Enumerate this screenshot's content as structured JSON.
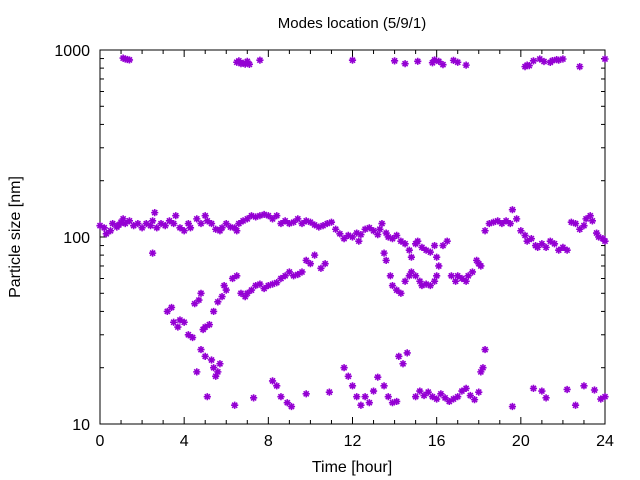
{
  "chart_data": {
    "type": "scatter",
    "title": "Modes location (5/9/1)",
    "xlabel": "Time [hour]",
    "ylabel": "Particle size [nm]",
    "xlim": [
      0,
      24
    ],
    "ylim": [
      10,
      1000
    ],
    "yscale": "log",
    "x_ticks": [
      "0",
      "4",
      "8",
      "12",
      "16",
      "20",
      "24"
    ],
    "y_ticks": [
      "10",
      "100",
      "1000"
    ],
    "grid": false,
    "marker": "asterisk",
    "color": "#9400d3",
    "series": [
      {
        "mode": "upper",
        "points": [
          [
            1.1,
            905
          ],
          [
            1.2,
            895
          ],
          [
            1.3,
            890
          ],
          [
            1.4,
            885
          ],
          [
            6.5,
            860
          ],
          [
            6.6,
            875
          ],
          [
            6.7,
            845
          ],
          [
            6.8,
            850
          ],
          [
            6.9,
            840
          ],
          [
            7.0,
            870
          ],
          [
            7.1,
            838
          ],
          [
            7.6,
            882
          ],
          [
            12.0,
            882
          ],
          [
            14.0,
            875
          ],
          [
            14.5,
            845
          ],
          [
            15.1,
            870
          ],
          [
            15.8,
            855
          ],
          [
            15.9,
            885
          ],
          [
            16.1,
            870
          ],
          [
            16.3,
            835
          ],
          [
            16.8,
            880
          ],
          [
            17.0,
            860
          ],
          [
            17.4,
            830
          ],
          [
            20.2,
            815
          ],
          [
            20.3,
            830
          ],
          [
            20.4,
            825
          ],
          [
            20.6,
            875
          ],
          [
            20.9,
            895
          ],
          [
            21.1,
            868
          ],
          [
            21.4,
            858
          ],
          [
            21.5,
            878
          ],
          [
            21.7,
            888
          ],
          [
            21.8,
            882
          ],
          [
            22.0,
            895
          ],
          [
            22.8,
            815
          ],
          [
            24.0,
            895
          ]
        ]
      },
      {
        "mode": "accumulation",
        "points": [
          [
            0.0,
            115
          ],
          [
            0.2,
            112
          ],
          [
            0.3,
            104
          ],
          [
            0.5,
            108
          ],
          [
            0.6,
            118
          ],
          [
            0.8,
            113
          ],
          [
            0.9,
            116
          ],
          [
            1.0,
            120
          ],
          [
            1.1,
            125
          ],
          [
            1.2,
            118
          ],
          [
            1.4,
            122
          ],
          [
            1.6,
            115
          ],
          [
            1.8,
            118
          ],
          [
            2.0,
            112
          ],
          [
            2.2,
            118
          ],
          [
            2.4,
            115
          ],
          [
            2.5,
            122
          ],
          [
            2.6,
            135
          ],
          [
            2.7,
            112
          ],
          [
            2.9,
            118
          ],
          [
            3.1,
            115
          ],
          [
            3.3,
            122
          ],
          [
            3.5,
            118
          ],
          [
            3.6,
            130
          ],
          [
            3.8,
            112
          ],
          [
            4.0,
            108
          ],
          [
            4.2,
            118
          ],
          [
            4.3,
            112
          ],
          [
            4.6,
            125
          ],
          [
            4.8,
            118
          ],
          [
            5.0,
            130
          ],
          [
            5.1,
            122
          ],
          [
            5.3,
            118
          ],
          [
            5.5,
            110
          ],
          [
            5.7,
            108
          ],
          [
            5.8,
            112
          ],
          [
            6.0,
            118
          ],
          [
            6.2,
            113
          ],
          [
            6.4,
            112
          ],
          [
            6.5,
            108
          ],
          [
            6.6,
            118
          ],
          [
            6.8,
            122
          ],
          [
            7.0,
            125
          ],
          [
            7.2,
            130
          ],
          [
            7.4,
            128
          ],
          [
            7.6,
            130
          ],
          [
            7.8,
            132
          ],
          [
            8.0,
            130
          ],
          [
            8.2,
            125
          ],
          [
            8.4,
            130
          ],
          [
            8.6,
            118
          ],
          [
            8.8,
            122
          ],
          [
            9.0,
            118
          ],
          [
            9.2,
            120
          ],
          [
            9.4,
            125
          ],
          [
            9.6,
            118
          ],
          [
            9.8,
            122
          ],
          [
            10.0,
            120
          ],
          [
            10.2,
            116
          ],
          [
            10.4,
            113
          ],
          [
            10.6,
            115
          ],
          [
            10.8,
            118
          ],
          [
            11.0,
            120
          ],
          [
            11.2,
            110
          ],
          [
            11.4,
            104
          ],
          [
            11.6,
            98
          ],
          [
            11.8,
            102
          ],
          [
            12.0,
            100
          ],
          [
            12.2,
            105
          ],
          [
            12.3,
            95
          ],
          [
            12.4,
            103
          ],
          [
            12.6,
            110
          ],
          [
            12.8,
            112
          ],
          [
            13.0,
            108
          ],
          [
            13.2,
            103
          ],
          [
            13.4,
            118
          ],
          [
            13.6,
            105
          ],
          [
            13.7,
            100
          ],
          [
            13.9,
            98
          ],
          [
            14.1,
            102
          ],
          [
            14.3,
            95
          ],
          [
            14.5,
            92
          ],
          [
            14.7,
            85
          ],
          [
            14.8,
            78
          ],
          [
            15.0,
            92
          ],
          [
            15.1,
            95
          ],
          [
            15.3,
            88
          ],
          [
            15.5,
            85
          ],
          [
            15.7,
            83
          ],
          [
            15.9,
            90
          ],
          [
            16.0,
            78
          ],
          [
            18.3,
            108
          ],
          [
            18.5,
            118
          ],
          [
            18.7,
            120
          ],
          [
            18.9,
            122
          ],
          [
            19.1,
            118
          ],
          [
            19.3,
            122
          ],
          [
            19.5,
            118
          ],
          [
            19.6,
            140
          ],
          [
            19.8,
            125
          ],
          [
            20.0,
            108
          ],
          [
            20.2,
            102
          ],
          [
            20.3,
            95
          ],
          [
            20.5,
            98
          ],
          [
            20.7,
            90
          ],
          [
            20.8,
            88
          ],
          [
            21.0,
            92
          ],
          [
            21.2,
            88
          ],
          [
            21.4,
            95
          ],
          [
            21.6,
            92
          ],
          [
            21.8,
            85
          ],
          [
            22.0,
            88
          ],
          [
            22.2,
            85
          ],
          [
            22.4,
            120
          ],
          [
            22.6,
            118
          ],
          [
            22.8,
            110
          ],
          [
            23.0,
            115
          ],
          [
            23.1,
            125
          ],
          [
            23.3,
            130
          ],
          [
            23.4,
            122
          ],
          [
            23.6,
            105
          ],
          [
            23.7,
            100
          ],
          [
            23.9,
            98
          ],
          [
            24.0,
            95
          ]
        ]
      },
      {
        "mode": "growing",
        "points": [
          [
            2.5,
            82
          ],
          [
            3.2,
            40
          ],
          [
            3.4,
            42
          ],
          [
            3.5,
            35
          ],
          [
            3.7,
            33
          ],
          [
            3.8,
            36
          ],
          [
            4.0,
            35
          ],
          [
            4.2,
            30
          ],
          [
            4.4,
            29
          ],
          [
            4.5,
            44
          ],
          [
            4.7,
            46
          ],
          [
            4.8,
            50
          ],
          [
            4.9,
            32
          ],
          [
            5.0,
            33
          ],
          [
            5.2,
            34
          ],
          [
            5.4,
            40
          ],
          [
            5.6,
            45
          ],
          [
            5.8,
            48
          ],
          [
            5.9,
            55
          ],
          [
            6.0,
            52
          ],
          [
            6.3,
            60
          ],
          [
            6.5,
            62
          ],
          [
            6.7,
            50
          ],
          [
            6.9,
            48
          ],
          [
            7.0,
            50
          ],
          [
            7.2,
            52
          ],
          [
            7.4,
            55
          ],
          [
            7.6,
            56
          ],
          [
            7.8,
            53
          ],
          [
            8.0,
            55
          ],
          [
            8.2,
            56
          ],
          [
            8.4,
            57
          ],
          [
            8.6,
            60
          ],
          [
            8.8,
            62
          ],
          [
            9.0,
            65
          ],
          [
            9.2,
            62
          ],
          [
            9.4,
            63
          ],
          [
            9.6,
            65
          ],
          [
            9.8,
            75
          ],
          [
            10.0,
            72
          ],
          [
            10.2,
            80
          ],
          [
            10.5,
            68
          ],
          [
            10.7,
            72
          ],
          [
            13.3,
            110
          ],
          [
            13.5,
            82
          ],
          [
            13.6,
            75
          ],
          [
            13.8,
            62
          ],
          [
            13.9,
            55
          ],
          [
            14.1,
            52
          ],
          [
            14.3,
            50
          ],
          [
            14.5,
            58
          ],
          [
            14.7,
            62
          ],
          [
            14.8,
            65
          ],
          [
            15.0,
            62
          ],
          [
            15.2,
            58
          ],
          [
            15.3,
            55
          ],
          [
            15.5,
            56
          ],
          [
            15.7,
            55
          ],
          [
            15.9,
            58
          ],
          [
            16.0,
            62
          ],
          [
            16.1,
            70
          ],
          [
            16.3,
            90
          ],
          [
            16.5,
            95
          ],
          [
            16.7,
            62
          ],
          [
            16.9,
            58
          ],
          [
            17.0,
            62
          ],
          [
            17.2,
            60
          ],
          [
            17.4,
            58
          ],
          [
            17.5,
            62
          ],
          [
            17.7,
            65
          ],
          [
            17.9,
            75
          ],
          [
            18.0,
            72
          ],
          [
            18.1,
            70
          ]
        ]
      },
      {
        "mode": "nucleation",
        "points": [
          [
            4.6,
            19
          ],
          [
            4.8,
            25
          ],
          [
            5.0,
            23
          ],
          [
            5.1,
            14
          ],
          [
            5.3,
            22
          ],
          [
            5.4,
            20
          ],
          [
            5.5,
            18
          ],
          [
            5.6,
            19
          ],
          [
            5.7,
            21
          ],
          [
            6.4,
            12.6
          ],
          [
            7.3,
            13.8
          ],
          [
            8.2,
            17
          ],
          [
            8.4,
            16
          ],
          [
            8.6,
            14
          ],
          [
            8.9,
            13
          ],
          [
            9.1,
            12.4
          ],
          [
            9.8,
            14.5
          ],
          [
            10.9,
            14.8
          ],
          [
            11.6,
            20
          ],
          [
            11.8,
            18
          ],
          [
            12.0,
            16
          ],
          [
            12.2,
            14
          ],
          [
            12.4,
            12.6
          ],
          [
            12.6,
            14
          ],
          [
            12.8,
            13
          ],
          [
            13.0,
            15
          ],
          [
            13.2,
            17.8
          ],
          [
            13.5,
            16
          ],
          [
            13.7,
            14
          ],
          [
            13.9,
            13
          ],
          [
            14.1,
            13.2
          ],
          [
            14.2,
            23
          ],
          [
            14.4,
            21
          ],
          [
            14.6,
            24
          ],
          [
            15.0,
            14
          ],
          [
            15.2,
            15
          ],
          [
            15.4,
            14.2
          ],
          [
            15.6,
            14.8
          ],
          [
            15.8,
            14
          ],
          [
            16.0,
            13.6
          ],
          [
            16.2,
            14.5
          ],
          [
            16.4,
            13.8
          ],
          [
            16.6,
            13.2
          ],
          [
            16.8,
            13.6
          ],
          [
            17.0,
            14
          ],
          [
            17.2,
            15
          ],
          [
            17.4,
            15.5
          ],
          [
            17.6,
            14.2
          ],
          [
            17.8,
            13.5
          ],
          [
            18.0,
            14.8
          ],
          [
            18.1,
            19
          ],
          [
            18.2,
            20
          ],
          [
            18.3,
            25
          ],
          [
            19.6,
            12.4
          ],
          [
            20.6,
            15.5
          ],
          [
            21.0,
            15
          ],
          [
            21.2,
            13.8
          ],
          [
            22.2,
            15.3
          ],
          [
            22.6,
            12.6
          ],
          [
            23.0,
            16
          ],
          [
            23.5,
            15.2
          ],
          [
            23.8,
            13.6
          ],
          [
            24.0,
            14
          ]
        ]
      }
    ]
  }
}
